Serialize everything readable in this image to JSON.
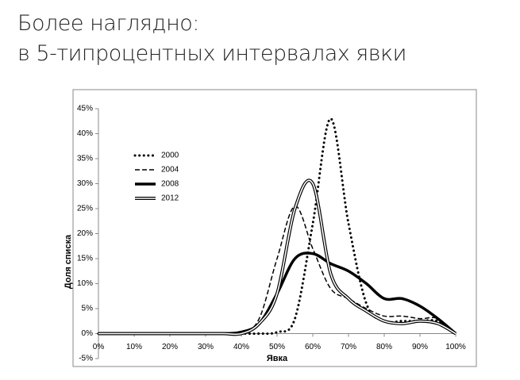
{
  "header": {
    "title_lines": [
      "Более наглядно:",
      "в 5-типроцентных интервалах явки"
    ]
  },
  "chart_data": {
    "type": "line",
    "xlabel": "Явка",
    "ylabel": "Доля списка",
    "x": [
      0,
      5,
      10,
      15,
      20,
      25,
      30,
      35,
      40,
      45,
      50,
      55,
      60,
      65,
      70,
      75,
      80,
      85,
      90,
      95,
      100
    ],
    "xlim": [
      0,
      100
    ],
    "xticks": [
      {
        "value": 0,
        "label": "0%"
      },
      {
        "value": 10,
        "label": "10%"
      },
      {
        "value": 20,
        "label": "20%"
      },
      {
        "value": 30,
        "label": "30%"
      },
      {
        "value": 40,
        "label": "40%"
      },
      {
        "value": 50,
        "label": "50%"
      },
      {
        "value": 60,
        "label": "60%"
      },
      {
        "value": 70,
        "label": "70%"
      },
      {
        "value": 80,
        "label": "80%"
      },
      {
        "value": 90,
        "label": "90%"
      },
      {
        "value": 100,
        "label": "100%"
      }
    ],
    "ylim": [
      -5,
      45
    ],
    "yticks": [
      {
        "value": -5,
        "label": "-5%"
      },
      {
        "value": 0,
        "label": "0%"
      },
      {
        "value": 5,
        "label": "5%"
      },
      {
        "value": 10,
        "label": "10%"
      },
      {
        "value": 15,
        "label": "15%"
      },
      {
        "value": 20,
        "label": "20%"
      },
      {
        "value": 25,
        "label": "25%"
      },
      {
        "value": 30,
        "label": "30%"
      },
      {
        "value": 35,
        "label": "35%"
      },
      {
        "value": 40,
        "label": "40%"
      },
      {
        "value": 45,
        "label": "45%"
      }
    ],
    "series": [
      {
        "name": "2000",
        "color": "#000000",
        "style": "dotted",
        "values": [
          0,
          0,
          0,
          0,
          0,
          0,
          0,
          0,
          0,
          0,
          0.3,
          3,
          22,
          43,
          22,
          6,
          2.5,
          2.5,
          2.5,
          2.5,
          0
        ]
      },
      {
        "name": "2004",
        "color": "#000000",
        "style": "dashed",
        "values": [
          0,
          0,
          0,
          0,
          0,
          0,
          0,
          0,
          0,
          3,
          15,
          25.5,
          17,
          9,
          7,
          5,
          3.5,
          3.5,
          3,
          3,
          0
        ]
      },
      {
        "name": "2008",
        "color": "#000000",
        "style": "thick",
        "values": [
          0,
          0,
          0,
          0,
          0,
          0,
          0,
          0,
          0.3,
          2,
          8,
          15,
          16,
          14,
          12.5,
          10,
          7,
          7,
          5.5,
          3,
          0
        ]
      },
      {
        "name": "2012",
        "color": "#000000",
        "style": "double",
        "values": [
          0,
          0,
          0,
          0,
          0,
          0,
          0,
          0,
          0,
          2,
          8,
          25,
          30,
          12,
          7,
          4.5,
          2.5,
          2,
          2.5,
          2,
          0
        ]
      }
    ]
  }
}
